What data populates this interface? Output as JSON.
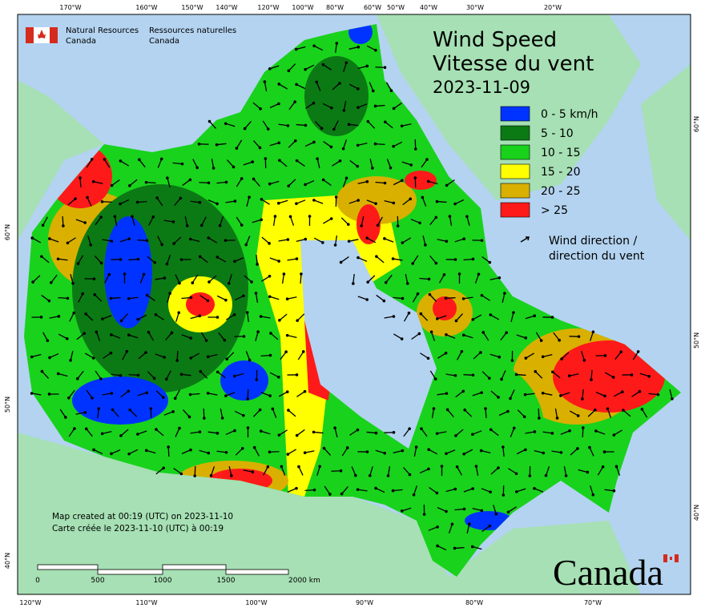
{
  "header": {
    "agency_en": [
      "Natural Resources",
      "Canada"
    ],
    "agency_fr": [
      "Ressources naturelles",
      "Canada"
    ]
  },
  "title": {
    "en": "Wind Speed",
    "fr": "Vitesse du vent",
    "date": "2023-11-09"
  },
  "legend": {
    "items": [
      {
        "label": "0 - 5 km/h",
        "color": "#0033ff"
      },
      {
        "label": "5 - 10",
        "color": "#0b7a14"
      },
      {
        "label": "10 - 15",
        "color": "#19d21c"
      },
      {
        "label": "15 - 20",
        "color": "#ffff00"
      },
      {
        "label": "20 - 25",
        "color": "#d9b000"
      },
      {
        "label": "> 25",
        "color": "#ff1a1a"
      }
    ],
    "direction": [
      "Wind direction /",
      "direction du vent"
    ]
  },
  "axes": {
    "top": [
      "170°W",
      "160°W",
      "150°W",
      "140°W",
      "120°W",
      "100°W",
      "80°W",
      "60°W",
      "50°W",
      "40°W",
      "30°W",
      "20°W"
    ],
    "bottom": [
      "120°W",
      "110°W",
      "100°W",
      "90°W",
      "80°W",
      "70°W"
    ],
    "left": [
      "60°N",
      "50°N",
      "40°N"
    ],
    "right": [
      "60°N",
      "50°N",
      "40°N"
    ]
  },
  "footer": {
    "created": [
      "Map created at 00:19 (UTC) on 2023-11-10",
      "Carte créée le 2023-11-10 (UTC) à 00:19"
    ],
    "scale": [
      "0",
      "500",
      "1000",
      "1500",
      "2000  km"
    ],
    "wordmark": "Canada"
  }
}
